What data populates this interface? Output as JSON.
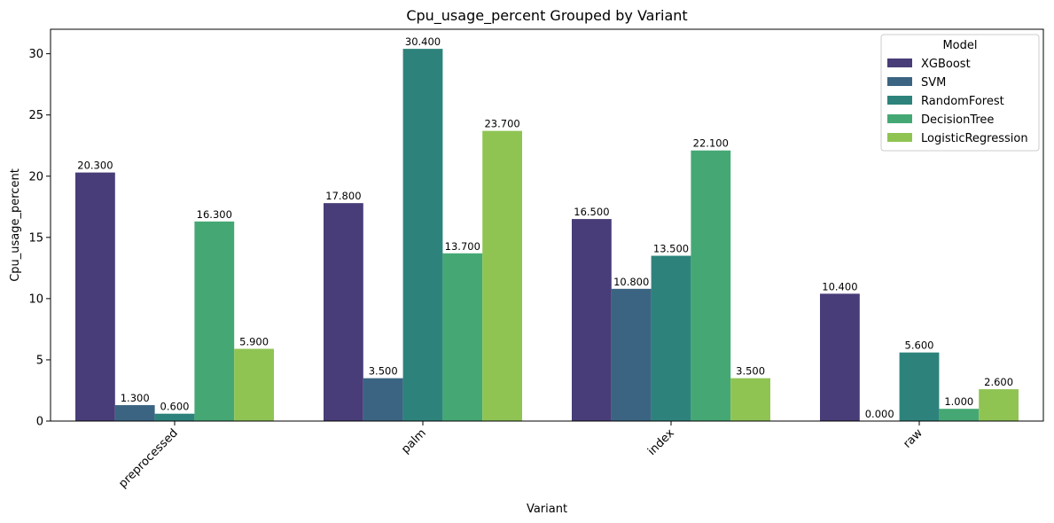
{
  "chart_data": {
    "type": "bar",
    "title": "Cpu_usage_percent Grouped by Variant",
    "xlabel": "Variant",
    "ylabel": "Cpu_usage_percent",
    "categories": [
      "preprocessed",
      "palm",
      "index",
      "raw"
    ],
    "ylim": [
      0,
      32
    ],
    "yticks": [
      0,
      5,
      10,
      15,
      20,
      25,
      30
    ],
    "grid": false,
    "legend": {
      "title": "Model",
      "placement": "top-right"
    },
    "series": [
      {
        "name": "XGBoost",
        "color": "#483d78",
        "values": [
          20.3,
          17.8,
          16.5,
          10.4
        ],
        "labels": [
          "20.300",
          "17.800",
          "16.500",
          "10.400"
        ]
      },
      {
        "name": "SVM",
        "color": "#3b6482",
        "values": [
          1.3,
          3.5,
          10.8,
          0.0
        ],
        "labels": [
          "1.300",
          "3.500",
          "10.800",
          "0.000"
        ]
      },
      {
        "name": "RandomForest",
        "color": "#2d837c",
        "values": [
          0.6,
          30.4,
          13.5,
          5.6
        ],
        "labels": [
          "0.600",
          "30.400",
          "13.500",
          "5.600"
        ]
      },
      {
        "name": "DecisionTree",
        "color": "#45a874",
        "values": [
          16.3,
          13.7,
          22.1,
          1.0
        ],
        "labels": [
          "16.300",
          "13.700",
          "22.100",
          "1.000"
        ]
      },
      {
        "name": "LogisticRegression",
        "color": "#8fc453",
        "values": [
          5.9,
          23.7,
          3.5,
          2.6
        ],
        "labels": [
          "5.900",
          "23.700",
          "3.500",
          "2.600"
        ]
      }
    ]
  }
}
